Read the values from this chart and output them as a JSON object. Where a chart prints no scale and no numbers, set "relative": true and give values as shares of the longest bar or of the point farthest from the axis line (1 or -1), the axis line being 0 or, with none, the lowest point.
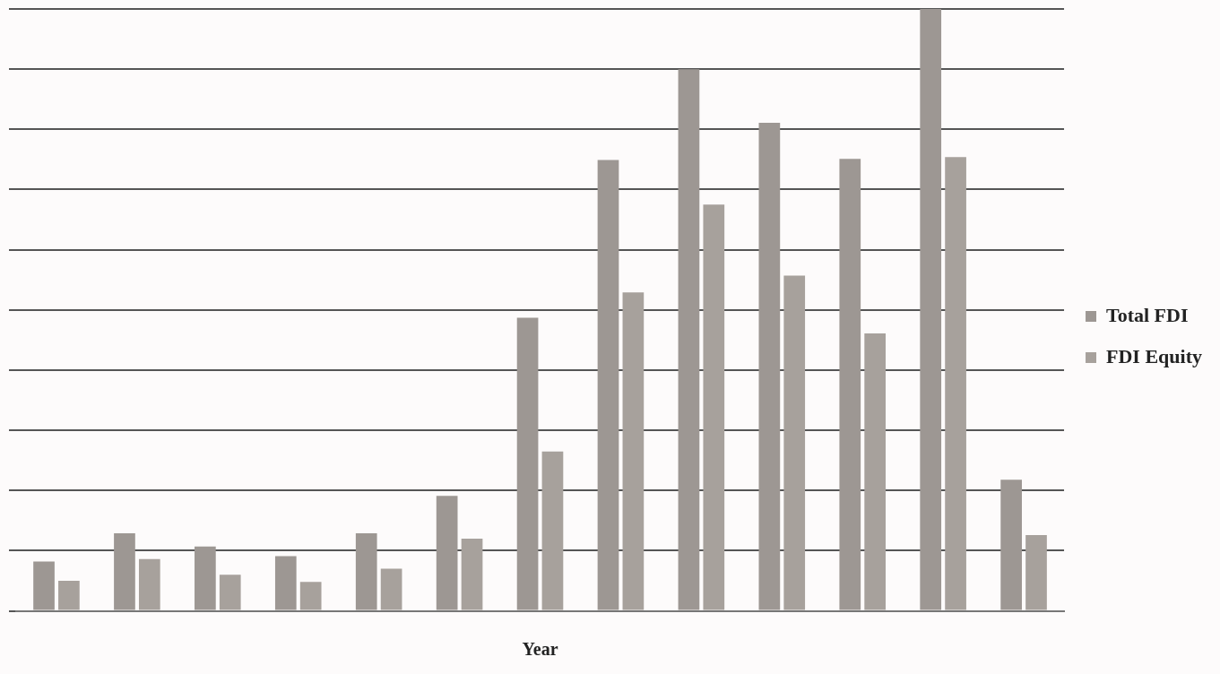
{
  "chart_data": {
    "type": "bar",
    "relative": true,
    "xlabel": "Year",
    "categories": [
      null,
      null,
      null,
      null,
      null,
      null,
      null,
      null,
      null,
      null,
      null,
      null,
      null
    ],
    "grid": "y",
    "legend": "right",
    "series": [
      {
        "name": "Total FDI",
        "color": "#9d9793",
        "values": [
          0.082,
          0.129,
          0.107,
          0.091,
          0.129,
          0.191,
          0.487,
          0.749,
          0.9,
          0.811,
          0.751,
          1,
          0.218
        ]
      },
      {
        "name": "FDI Equity",
        "color": "#a7a19c",
        "values": [
          0.05,
          0.086,
          0.06,
          0.048,
          0.07,
          0.12,
          0.265,
          0.529,
          0.675,
          0.557,
          0.461,
          0.754,
          0.126
        ]
      }
    ]
  }
}
